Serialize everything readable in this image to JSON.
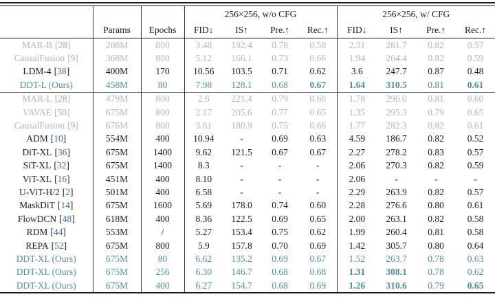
{
  "table": {
    "colors": {
      "ours_teal": "#4e919a",
      "faded_gray": "#b5b5b5",
      "text_black": "#1c1c1c",
      "citation_blue": "#3e6cb0",
      "citation_blue_faded": "#95acd6",
      "rule_dark": "#1a1a1a"
    },
    "col_groups": [
      {
        "label": "256×256, w/o CFG"
      },
      {
        "label": "256×256, w/ CFG"
      }
    ],
    "columns": {
      "model": "",
      "params": "Params",
      "epochs": "Epochs",
      "metrics": [
        "FID↓",
        "IS↑",
        "Pre.↑",
        "Rec.↑"
      ]
    },
    "rows": [
      {
        "model": "MAR-B",
        "cite": "28",
        "style": "gray",
        "sep_above": false,
        "params": "208M",
        "epochs": "800",
        "wo_cfg": [
          "3.48",
          "192.4",
          "0.78",
          "0.58"
        ],
        "w_cfg": [
          "2.31",
          "281.7",
          "0.82",
          "0.57"
        ],
        "bold_wo": [],
        "bold_w": []
      },
      {
        "model": "CausalFusion",
        "cite": "9",
        "style": "gray",
        "sep_above": false,
        "params": "368M",
        "epochs": "800",
        "wo_cfg": [
          "5.12",
          "166.1",
          "0.73",
          "0.66"
        ],
        "w_cfg": [
          "1.94",
          "264.4",
          "0.82",
          "0.59"
        ],
        "bold_wo": [],
        "bold_w": []
      },
      {
        "model": "LDM-4",
        "cite": "38",
        "style": "black",
        "sep_above": false,
        "params": "400M",
        "epochs": "170",
        "wo_cfg": [
          "10.56",
          "103.5",
          "0.71",
          "0.62"
        ],
        "w_cfg": [
          "3.6",
          "247.7",
          "0.87",
          "0.48"
        ],
        "bold_wo": [],
        "bold_w": []
      },
      {
        "model": "DDT-L (Ours)",
        "cite": null,
        "style": "teal",
        "sep_above": false,
        "params": "458M",
        "epochs": "80",
        "wo_cfg": [
          "7.98",
          "128.1",
          "0.68",
          "0.67"
        ],
        "w_cfg": [
          "1.64",
          "310.5",
          "0.81",
          "0.61"
        ],
        "bold_wo": [
          3
        ],
        "bold_w": [
          0,
          1,
          3
        ]
      },
      {
        "model": "MAR-L",
        "cite": "28",
        "style": "gray",
        "sep_above": true,
        "params": "479M",
        "epochs": "800",
        "wo_cfg": [
          "2.6",
          "221.4",
          "0.79",
          "0.60"
        ],
        "w_cfg": [
          "1.78",
          "296.0",
          "0.81",
          "0.60"
        ],
        "bold_wo": [],
        "bold_w": []
      },
      {
        "model": "VAVAE",
        "cite": "50",
        "style": "gray",
        "sep_above": false,
        "params": "675M",
        "epochs": "800",
        "wo_cfg": [
          "2.17",
          "205.6",
          "0.77",
          "0.65"
        ],
        "w_cfg": [
          "1.35",
          "295.3",
          "0.79",
          "0.65"
        ],
        "bold_wo": [],
        "bold_w": []
      },
      {
        "model": "CausalFusion",
        "cite": "9",
        "style": "gray",
        "sep_above": false,
        "params": "676M",
        "epochs": "800",
        "wo_cfg": [
          "3.61",
          "180.9",
          "0.75",
          "0.66"
        ],
        "w_cfg": [
          "1.77",
          "282.3",
          "0.82",
          "0.61"
        ],
        "bold_wo": [],
        "bold_w": []
      },
      {
        "model": "ADM",
        "cite": "10",
        "style": "black",
        "sep_above": false,
        "params": "554M",
        "epochs": "400",
        "wo_cfg": [
          "10.94",
          "-",
          "0.69",
          "0.63"
        ],
        "w_cfg": [
          "4.59",
          "186.7",
          "0.82",
          "0.52"
        ],
        "bold_wo": [],
        "bold_w": []
      },
      {
        "model": "DiT-XL",
        "cite": "36",
        "style": "black",
        "sep_above": false,
        "params": "675M",
        "epochs": "1400",
        "wo_cfg": [
          "9.62",
          "121.5",
          "0.67",
          "0.67"
        ],
        "w_cfg": [
          "2.27",
          "278.2",
          "0.83",
          "0.57"
        ],
        "bold_wo": [],
        "bold_w": []
      },
      {
        "model": "SiT-XL",
        "cite": "32",
        "style": "black",
        "sep_above": false,
        "params": "675M",
        "epochs": "1400",
        "wo_cfg": [
          "8.3",
          "-",
          "-",
          "-"
        ],
        "w_cfg": [
          "2.06",
          "270.3",
          "0.82",
          "0.59"
        ],
        "bold_wo": [],
        "bold_w": []
      },
      {
        "model": "ViT-XL",
        "cite": "16",
        "style": "black",
        "sep_above": false,
        "params": "451M",
        "epochs": "400",
        "wo_cfg": [
          "8.10",
          "-",
          "-",
          "-"
        ],
        "w_cfg": [
          "2.06",
          "-",
          "-",
          "-"
        ],
        "bold_wo": [],
        "bold_w": []
      },
      {
        "model": "U-ViT-H/2",
        "cite": "2",
        "style": "black",
        "sep_above": false,
        "params": "501M",
        "epochs": "400",
        "wo_cfg": [
          "6.58",
          "-",
          "-",
          "-"
        ],
        "w_cfg": [
          "2.29",
          "263.9",
          "0.82",
          "0.57"
        ],
        "bold_wo": [],
        "bold_w": []
      },
      {
        "model": "MaskDiT",
        "cite": "14",
        "style": "black",
        "sep_above": false,
        "params": "675M",
        "epochs": "1600",
        "wo_cfg": [
          "5.69",
          "178.0",
          "0.74",
          "0.60"
        ],
        "w_cfg": [
          "2.28",
          "276.6",
          "0.80",
          "0.61"
        ],
        "bold_wo": [],
        "bold_w": []
      },
      {
        "model": "FlowDCN",
        "cite": "48",
        "style": "black",
        "sep_above": false,
        "params": "618M",
        "epochs": "400",
        "wo_cfg": [
          "8.36",
          "122.5",
          "0.69",
          "0.65"
        ],
        "w_cfg": [
          "2.00",
          "263.1",
          "0.82",
          "0.58"
        ],
        "bold_wo": [],
        "bold_w": []
      },
      {
        "model": "RDM",
        "cite": "44",
        "style": "black",
        "sep_above": false,
        "params": "553M",
        "epochs": "/",
        "wo_cfg": [
          "5.27",
          "153.4",
          "0.75",
          "0.62"
        ],
        "w_cfg": [
          "1.99",
          "260.4",
          "0.81",
          "0.58"
        ],
        "bold_wo": [],
        "bold_w": []
      },
      {
        "model": "REPA",
        "cite": "52",
        "style": "black",
        "sep_above": false,
        "params": "675M",
        "epochs": "800",
        "wo_cfg": [
          "5.9",
          "157.8",
          "0.70",
          "0.69"
        ],
        "w_cfg": [
          "1.42",
          "305.7",
          "0.80",
          "0.64"
        ],
        "bold_wo": [],
        "bold_w": []
      },
      {
        "model": "DDT-XL (Ours)",
        "cite": null,
        "style": "teal",
        "sep_above": false,
        "params": "675M",
        "epochs": "80",
        "wo_cfg": [
          "6.62",
          "135.2",
          "0.69",
          "0.67"
        ],
        "w_cfg": [
          "1.52",
          "263.7",
          "0.78",
          "0.63"
        ],
        "bold_wo": [],
        "bold_w": []
      },
      {
        "model": "DDT-XL (Ours)",
        "cite": null,
        "style": "teal",
        "sep_above": false,
        "params": "675M",
        "epochs": "256",
        "wo_cfg": [
          "6.30",
          "146.7",
          "0.68",
          "0.68"
        ],
        "w_cfg": [
          "1.31",
          "308.1",
          "0.78",
          "0.62"
        ],
        "bold_wo": [],
        "bold_w": [
          0,
          1
        ]
      },
      {
        "model": "DDT-XL (Ours)",
        "cite": null,
        "style": "teal",
        "sep_above": false,
        "params": "675M",
        "epochs": "400",
        "wo_cfg": [
          "6.27",
          "154.7",
          "0.68",
          "0.69"
        ],
        "w_cfg": [
          "1.26",
          "310.6",
          "0.79",
          "0.65"
        ],
        "bold_wo": [],
        "bold_w": [
          0,
          1,
          3
        ]
      }
    ]
  }
}
